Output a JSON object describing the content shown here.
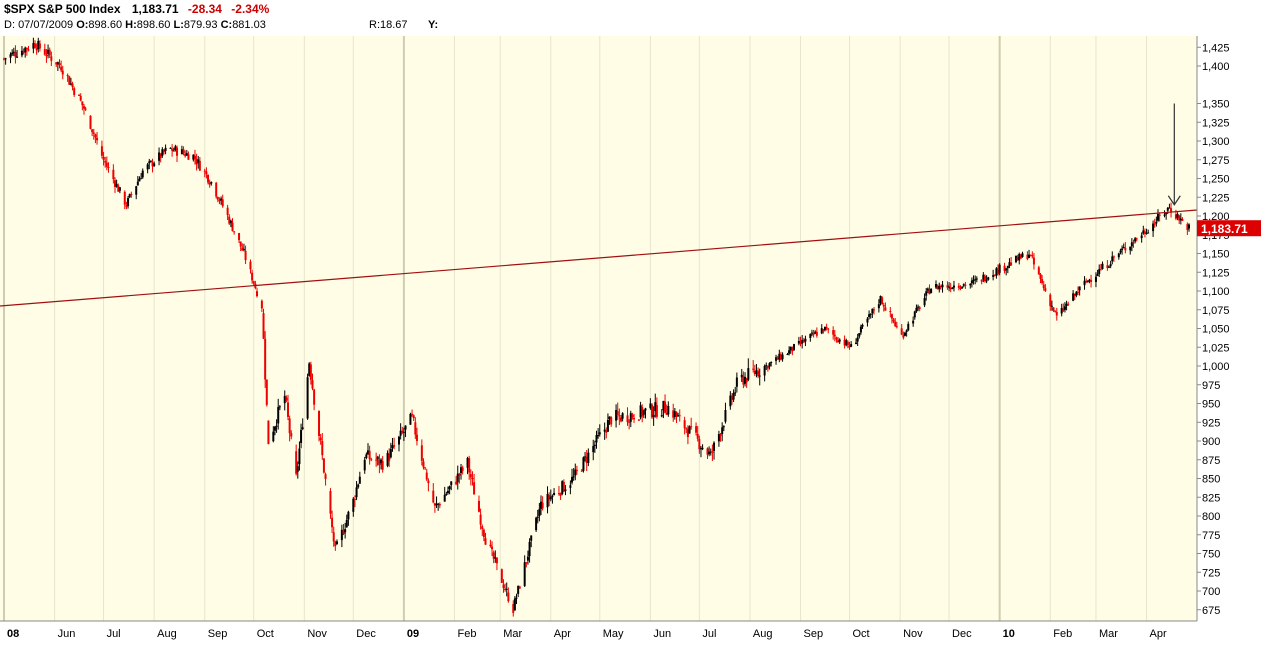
{
  "header": {
    "symbol": "$SPX S&P 500 Index",
    "last": "1,183.71",
    "change": "-28.34",
    "change_pct": "-2.34%",
    "ohlc_prefix": "D:",
    "date": "07/07/2009",
    "open_label": "O:",
    "open": "898.60",
    "high_label": "H:",
    "high": "898.60",
    "low_label": "L:",
    "low": "879.93",
    "close_label": "C:",
    "close": "881.03",
    "r_label": "R:18.67",
    "y_label": "Y:"
  },
  "price_tag": "1,183.71",
  "colors": {
    "background": "#fffde6",
    "up": "#000000",
    "down": "#ee0000",
    "trendline": "#a01010",
    "grid": "#e8e5cc",
    "price_tag": "#dd0000"
  },
  "chart_data": {
    "type": "candlestick",
    "y_ticks": [
      675,
      700,
      725,
      750,
      775,
      800,
      825,
      850,
      875,
      900,
      925,
      950,
      975,
      1000,
      1025,
      1050,
      1075,
      1100,
      1125,
      1150,
      1175,
      1200,
      1225,
      1250,
      1275,
      1300,
      1325,
      1350,
      1400,
      1425
    ],
    "y_tick_labels": [
      "675",
      "700",
      "725",
      "750",
      "775",
      "800",
      "825",
      "850",
      "875",
      "900",
      "925",
      "950",
      "975",
      "1,000",
      "1,025",
      "1,050",
      "1,075",
      "1,100",
      "1,125",
      "1,150",
      "1,175",
      "1,200",
      "1,225",
      "1,250",
      "1,275",
      "1,300",
      "1,325",
      "1,350",
      "1,400",
      "1,425"
    ],
    "x_labels": [
      "08",
      "Jun",
      "Jul",
      "Aug",
      "Sep",
      "Oct",
      "Nov",
      "Dec",
      "09",
      "Feb",
      "Mar",
      "Apr",
      "May",
      "Jun",
      "Jul",
      "Aug",
      "Sep",
      "Oct",
      "Nov",
      "Dec",
      "10",
      "Feb",
      "Mar",
      "Apr"
    ],
    "x_dates": [
      "2008-05",
      "2008-06",
      "2008-07",
      "2008-08",
      "2008-09",
      "2008-10",
      "2008-11",
      "2008-12",
      "2009-01",
      "2009-02",
      "2009-03",
      "2009-04",
      "2009-05",
      "2009-06",
      "2009-07",
      "2009-08",
      "2009-09",
      "2009-10",
      "2009-11",
      "2009-12",
      "2010-01",
      "2010-02",
      "2010-03",
      "2010-04"
    ],
    "date_range": [
      "2008-05-01",
      "2010-04-27"
    ],
    "ylim": [
      660,
      1440
    ],
    "series": [
      {
        "values": [
          [
            "2008-05-01",
            1410
          ],
          [
            "2008-05-20",
            1430
          ],
          [
            "2008-06-05",
            1400
          ],
          [
            "2008-06-20",
            1340
          ],
          [
            "2008-07-01",
            1275
          ],
          [
            "2008-07-15",
            1215
          ],
          [
            "2008-07-25",
            1260
          ],
          [
            "2008-08-10",
            1290
          ],
          [
            "2008-08-25",
            1280
          ],
          [
            "2008-09-05",
            1245
          ],
          [
            "2008-09-15",
            1200
          ],
          [
            "2008-09-25",
            1150
          ],
          [
            "2008-10-06",
            1080
          ],
          [
            "2008-10-10",
            900
          ],
          [
            "2008-10-20",
            960
          ],
          [
            "2008-10-27",
            850
          ],
          [
            "2008-11-04",
            1005
          ],
          [
            "2008-11-20",
            752
          ],
          [
            "2008-12-01",
            820
          ],
          [
            "2008-12-08",
            880
          ],
          [
            "2008-12-20",
            870
          ],
          [
            "2009-01-06",
            930
          ],
          [
            "2009-01-20",
            810
          ],
          [
            "2009-02-09",
            870
          ],
          [
            "2009-02-20",
            770
          ],
          [
            "2009-03-09",
            676
          ],
          [
            "2009-03-26",
            815
          ],
          [
            "2009-04-15",
            850
          ],
          [
            "2009-05-08",
            930
          ],
          [
            "2009-06-12",
            945
          ],
          [
            "2009-07-08",
            880
          ],
          [
            "2009-07-25",
            980
          ],
          [
            "2009-08-15",
            1005
          ],
          [
            "2009-09-15",
            1050
          ],
          [
            "2009-10-02",
            1025
          ],
          [
            "2009-10-20",
            1090
          ],
          [
            "2009-11-02",
            1040
          ],
          [
            "2009-11-20",
            1105
          ],
          [
            "2009-12-15",
            1110
          ],
          [
            "2010-01-19",
            1150
          ],
          [
            "2010-02-05",
            1065
          ],
          [
            "2010-02-22",
            1110
          ],
          [
            "2010-03-15",
            1150
          ],
          [
            "2010-04-05",
            1190
          ],
          [
            "2010-04-15",
            1211
          ],
          [
            "2010-04-27",
            1184
          ]
        ]
      }
    ],
    "annotations": [
      {
        "type": "trendline",
        "from": [
          "2008-05-01",
          1080
        ],
        "to": [
          "2010-04-27",
          1208
        ]
      },
      {
        "type": "arrow",
        "date": "2010-04-18",
        "from": 1350,
        "to": 1215
      }
    ],
    "grid": true,
    "y_axis_side": "right"
  }
}
